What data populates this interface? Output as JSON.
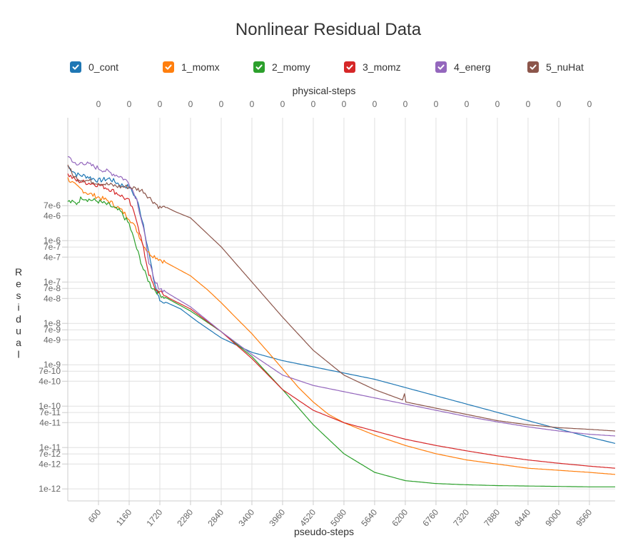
{
  "chart_data": {
    "type": "line",
    "title": "Nonlinear Residual Data",
    "xlabel": "pseudo-steps",
    "x2label": "physical-steps",
    "ylabel": "Residual",
    "yscale": "log",
    "xlim": [
      40,
      10030
    ],
    "ylim_log10": [
      -12.29,
      -3.03
    ],
    "grid": true,
    "legend_position": "top",
    "x_ticks": [
      600,
      1160,
      1720,
      2280,
      2840,
      3400,
      3960,
      4520,
      5080,
      5640,
      6200,
      6760,
      7320,
      7880,
      8440,
      9000,
      9560
    ],
    "x2_tick_labels": [
      "0",
      "0",
      "0",
      "0",
      "0",
      "0",
      "0",
      "0",
      "0",
      "0",
      "0",
      "0",
      "0",
      "0",
      "0",
      "0",
      "0"
    ],
    "y_ticks": [
      {
        "label": "7e-6",
        "value": 7e-06
      },
      {
        "label": "4e-6",
        "value": 4e-06
      },
      {
        "label": "1e-6",
        "value": 1e-06
      },
      {
        "label": "7e-7",
        "value": 7e-07
      },
      {
        "label": "4e-7",
        "value": 4e-07
      },
      {
        "label": "1e-7",
        "value": 1e-07
      },
      {
        "label": "7e-8",
        "value": 7e-08
      },
      {
        "label": "4e-8",
        "value": 4e-08
      },
      {
        "label": "1e-8",
        "value": 1e-08
      },
      {
        "label": "7e-9",
        "value": 7e-09
      },
      {
        "label": "4e-9",
        "value": 4e-09
      },
      {
        "label": "1e-9",
        "value": 1e-09
      },
      {
        "label": "7e-10",
        "value": 7e-10
      },
      {
        "label": "4e-10",
        "value": 4e-10
      },
      {
        "label": "1e-10",
        "value": 1e-10
      },
      {
        "label": "7e-11",
        "value": 7e-11
      },
      {
        "label": "4e-11",
        "value": 4e-11
      },
      {
        "label": "1e-11",
        "value": 1e-11
      },
      {
        "label": "7e-12",
        "value": 7e-12
      },
      {
        "label": "4e-12",
        "value": 4e-12
      },
      {
        "label": "1e-12",
        "value": 1e-12
      }
    ],
    "series": [
      {
        "name": "0_cont",
        "color": "#1f77b4",
        "x": [
          40,
          200,
          400,
          600,
          800,
          1000,
          1160,
          1300,
          1420,
          1520,
          1600,
          1680,
          1720,
          1850,
          2100,
          2400,
          2840,
          3400,
          3960,
          4520,
          5080,
          5640,
          6200,
          6760,
          7320,
          7880,
          8440,
          9000,
          9560,
          10030
        ],
        "log10y": [
          -4.2,
          -4.4,
          -4.45,
          -4.55,
          -4.5,
          -4.65,
          -4.7,
          -5.0,
          -5.6,
          -6.3,
          -6.9,
          -7.3,
          -7.45,
          -7.5,
          -7.65,
          -7.95,
          -8.35,
          -8.7,
          -8.9,
          -9.05,
          -9.2,
          -9.35,
          -9.55,
          -9.75,
          -9.95,
          -10.15,
          -10.35,
          -10.55,
          -10.75,
          -10.9
        ]
      },
      {
        "name": "1_momx",
        "color": "#ff7f0e",
        "x": [
          40,
          200,
          400,
          600,
          800,
          1000,
          1160,
          1300,
          1420,
          1520,
          1720,
          2000,
          2280,
          2600,
          2840,
          3100,
          3400,
          3700,
          3960,
          4250,
          4520,
          4800,
          5080,
          5640,
          6200,
          6760,
          7320,
          7880,
          8440,
          9000,
          9560,
          10030
        ],
        "log10y": [
          -4.5,
          -4.7,
          -4.85,
          -4.95,
          -5.05,
          -5.25,
          -5.45,
          -5.75,
          -6.1,
          -6.3,
          -6.45,
          -6.65,
          -6.85,
          -7.2,
          -7.5,
          -7.85,
          -8.25,
          -8.7,
          -9.1,
          -9.55,
          -9.9,
          -10.2,
          -10.4,
          -10.7,
          -10.95,
          -11.15,
          -11.3,
          -11.4,
          -11.5,
          -11.55,
          -11.6,
          -11.65
        ]
      },
      {
        "name": "2_momy",
        "color": "#2ca02c",
        "x": [
          40,
          200,
          300,
          400,
          600,
          800,
          1000,
          1160,
          1300,
          1420,
          1560,
          1720,
          2000,
          2280,
          2840,
          3400,
          3960,
          4520,
          5080,
          5640,
          6200,
          6760,
          7320,
          7880,
          8440,
          9000,
          9560,
          10030
        ],
        "log10y": [
          -5.05,
          -5.1,
          -4.95,
          -5.0,
          -5.05,
          -5.15,
          -5.3,
          -5.6,
          -6.2,
          -6.7,
          -7.1,
          -7.3,
          -7.5,
          -7.7,
          -8.2,
          -8.8,
          -9.6,
          -10.45,
          -11.15,
          -11.6,
          -11.8,
          -11.87,
          -11.9,
          -11.92,
          -11.93,
          -11.94,
          -11.95,
          -11.95
        ]
      },
      {
        "name": "3_momz",
        "color": "#d62728",
        "x": [
          40,
          200,
          400,
          600,
          800,
          1000,
          1160,
          1300,
          1420,
          1520,
          1620,
          1720,
          1900,
          2280,
          2840,
          3400,
          3960,
          4520,
          5080,
          5640,
          6200,
          6760,
          7320,
          7880,
          8440,
          9000,
          9560,
          10030
        ],
        "log10y": [
          -4.4,
          -4.55,
          -4.6,
          -4.65,
          -4.75,
          -4.9,
          -5.05,
          -5.5,
          -6.2,
          -6.8,
          -7.15,
          -7.25,
          -7.4,
          -7.65,
          -8.2,
          -8.85,
          -9.6,
          -10.1,
          -10.4,
          -10.6,
          -10.8,
          -10.95,
          -11.08,
          -11.2,
          -11.3,
          -11.38,
          -11.45,
          -11.5
        ]
      },
      {
        "name": "4_energ",
        "color": "#9467bd",
        "x": [
          40,
          120,
          200,
          300,
          400,
          600,
          800,
          1000,
          1160,
          1300,
          1420,
          1520,
          1620,
          1720,
          1900,
          2280,
          2840,
          3400,
          3960,
          4520,
          5080,
          5640,
          6200,
          6760,
          7320,
          7880,
          8440,
          9000,
          9560,
          10030
        ],
        "log10y": [
          -3.95,
          -4.05,
          -4.2,
          -4.1,
          -4.15,
          -4.25,
          -4.35,
          -4.45,
          -4.6,
          -5.0,
          -5.7,
          -6.5,
          -7.0,
          -7.15,
          -7.3,
          -7.6,
          -8.2,
          -8.75,
          -9.25,
          -9.5,
          -9.65,
          -9.8,
          -9.95,
          -10.1,
          -10.25,
          -10.38,
          -10.5,
          -10.6,
          -10.68,
          -10.72
        ]
      },
      {
        "name": "5_nuHat",
        "color": "#8c564b",
        "x": [
          40,
          120,
          200,
          400,
          600,
          800,
          1000,
          1160,
          1300,
          1420,
          1520,
          1720,
          1850,
          2000,
          2280,
          2840,
          3400,
          3960,
          4520,
          5080,
          5640,
          6150,
          6185,
          6210,
          6760,
          7320,
          7880,
          8440,
          9000,
          9560,
          10030
        ],
        "log10y": [
          -4.15,
          -4.4,
          -4.5,
          -4.55,
          -4.6,
          -4.65,
          -4.7,
          -4.7,
          -4.75,
          -4.8,
          -4.95,
          -5.2,
          -5.2,
          -5.3,
          -5.45,
          -6.15,
          -7.0,
          -7.85,
          -8.65,
          -9.25,
          -9.6,
          -9.85,
          -9.7,
          -9.9,
          -10.05,
          -10.2,
          -10.35,
          -10.45,
          -10.52,
          -10.56,
          -10.6
        ]
      }
    ]
  }
}
